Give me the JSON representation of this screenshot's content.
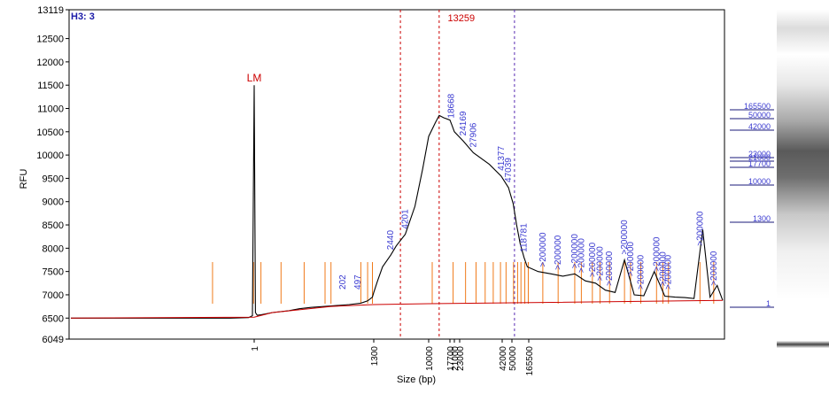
{
  "chart_data": {
    "type": "line",
    "panel_label": "H3: 3",
    "xlabel": "Size (bp)",
    "ylabel": "RFU",
    "ylim": [
      6049,
      13119
    ],
    "y_ticks": [
      "13119",
      "12500",
      "12000",
      "11500",
      "11000",
      "10500",
      "10000",
      "9500",
      "9000",
      "8500",
      "8000",
      "7500",
      "7000",
      "6500",
      "6049"
    ],
    "x_ticks": [
      {
        "label": "1",
        "bp": 1
      },
      {
        "label": "1300",
        "bp": 1300
      },
      {
        "label": "10000",
        "bp": 10000
      },
      {
        "label": "17700",
        "bp": 17700
      },
      {
        "label": "21000",
        "bp": 21000
      },
      {
        "label": "23000",
        "bp": 23000
      },
      {
        "label": "42000",
        "bp": 42000
      },
      {
        "label": "50000",
        "bp": 50000
      },
      {
        "label": "165500",
        "bp": 165500
      }
    ],
    "marker_line": {
      "label": "13259",
      "bp": 13259,
      "color": "#cc0000"
    },
    "smear_bounds_bp": [
      3500,
      13259
    ],
    "region_end_bp": 60000,
    "lower_marker": {
      "label": "LM",
      "bp": 1,
      "rfu": 11500
    },
    "series": [
      {
        "color": "#000000",
        "x": [
          0.005,
          0.2,
          0.5,
          0.85,
          0.95,
          1,
          1.08,
          1.2,
          1.5,
          3,
          8,
          15,
          30,
          100,
          300,
          600,
          900,
          1200,
          1300,
          1500,
          1800,
          2440,
          3000,
          4201,
          6000,
          8000,
          10000,
          12000,
          13259,
          15000,
          17700,
          19000,
          21000,
          24169,
          27906,
          35000,
          41377,
          47039,
          55000,
          70000,
          90000,
          118781,
          150000,
          200000,
          260000,
          330000,
          420000,
          520000,
          640000,
          780000,
          950000,
          1150000,
          1400000,
          1700000,
          2100000,
          2600000,
          3200000,
          3900000,
          4700000,
          5600000,
          6500000,
          7500000,
          8400000
        ],
        "values": [
          6500,
          6500,
          6500,
          6510,
          6550,
          11500,
          6620,
          6560,
          6570,
          6620,
          6660,
          6700,
          6730,
          6760,
          6790,
          6820,
          6870,
          6950,
          7050,
          7300,
          7600,
          7850,
          8050,
          8300,
          8900,
          9700,
          10400,
          10700,
          10850,
          10800,
          10750,
          10650,
          10500,
          10300,
          10050,
          9800,
          9550,
          9300,
          8950,
          8500,
          8100,
          7800,
          7600,
          7500,
          7450,
          7400,
          7450,
          7300,
          7250,
          7100,
          7050,
          7750,
          7000,
          6980,
          7500,
          6970,
          6950,
          6940,
          6920,
          8400,
          6950,
          7200,
          6880
        ]
      },
      {
        "color": "#cc0000",
        "x": [
          0.005,
          1,
          3,
          100,
          1300,
          10000,
          100000,
          8400000
        ],
        "values": [
          6500,
          6520,
          6620,
          6750,
          6790,
          6810,
          6830,
          6880
        ]
      }
    ],
    "peak_labels": [
      {
        "label": "202",
        "bp": 202
      },
      {
        "label": "497",
        "bp": 497
      },
      {
        "label": "2440",
        "bp": 2440
      },
      {
        "label": "4201",
        "bp": 4201
      },
      {
        "label": "18668",
        "bp": 18668
      },
      {
        "label": "24169",
        "bp": 24169
      },
      {
        "label": "27906",
        "bp": 27906
      },
      {
        "label": "41377",
        "bp": 41377
      },
      {
        "label": "47039",
        "bp": 47039
      },
      {
        "label": "118781",
        "bp": 118781
      },
      {
        "label": ">200000",
        "bp": 220000
      },
      {
        "label": ">200000",
        "bp": 300000
      },
      {
        "label": ">200000",
        "bp": 420000
      },
      {
        "label": ">200000",
        "bp": 480000
      },
      {
        "label": ">200000",
        "bp": 600000
      },
      {
        "label": ">200000",
        "bp": 700000
      },
      {
        "label": ">200000",
        "bp": 850000
      },
      {
        "label": ">200000",
        "bp": 1150000
      },
      {
        "label": ">200000",
        "bp": 1300000
      },
      {
        "label": ">200000",
        "bp": 1600000
      },
      {
        "label": ">200000",
        "bp": 2200000
      },
      {
        "label": ">200000",
        "bp": 2500000
      },
      {
        "label": ">200000",
        "bp": 2800000
      },
      {
        "label": ">200000",
        "bp": 5300000
      },
      {
        "label": ">200000",
        "bp": 7000000
      }
    ],
    "peak_ticks_bp": [
      0.3,
      0.98,
      1.5,
      5,
      20,
      70,
      100,
      600,
      900,
      1200,
      11000,
      20000,
      25000,
      29000,
      33000,
      37000,
      41000,
      45000,
      56000,
      75000,
      95000,
      125000,
      160000,
      220000,
      300000,
      420000,
      480000,
      600000,
      700000,
      850000,
      1150000,
      1300000,
      1600000,
      2200000,
      2500000,
      2800000,
      5300000,
      7000000
    ],
    "gel_ladder": [
      {
        "label": "165500",
        "row": 0
      },
      {
        "label": "50000",
        "row": 1
      },
      {
        "label": "42000",
        "row": 2
      },
      {
        "label": "23000",
        "row": 3
      },
      {
        "label": "21000",
        "row": 4
      },
      {
        "label": "17700",
        "row": 5
      },
      {
        "label": "10000",
        "row": 6
      },
      {
        "label": "1300",
        "row": 7
      },
      {
        "label": "1",
        "row": 8
      }
    ]
  }
}
